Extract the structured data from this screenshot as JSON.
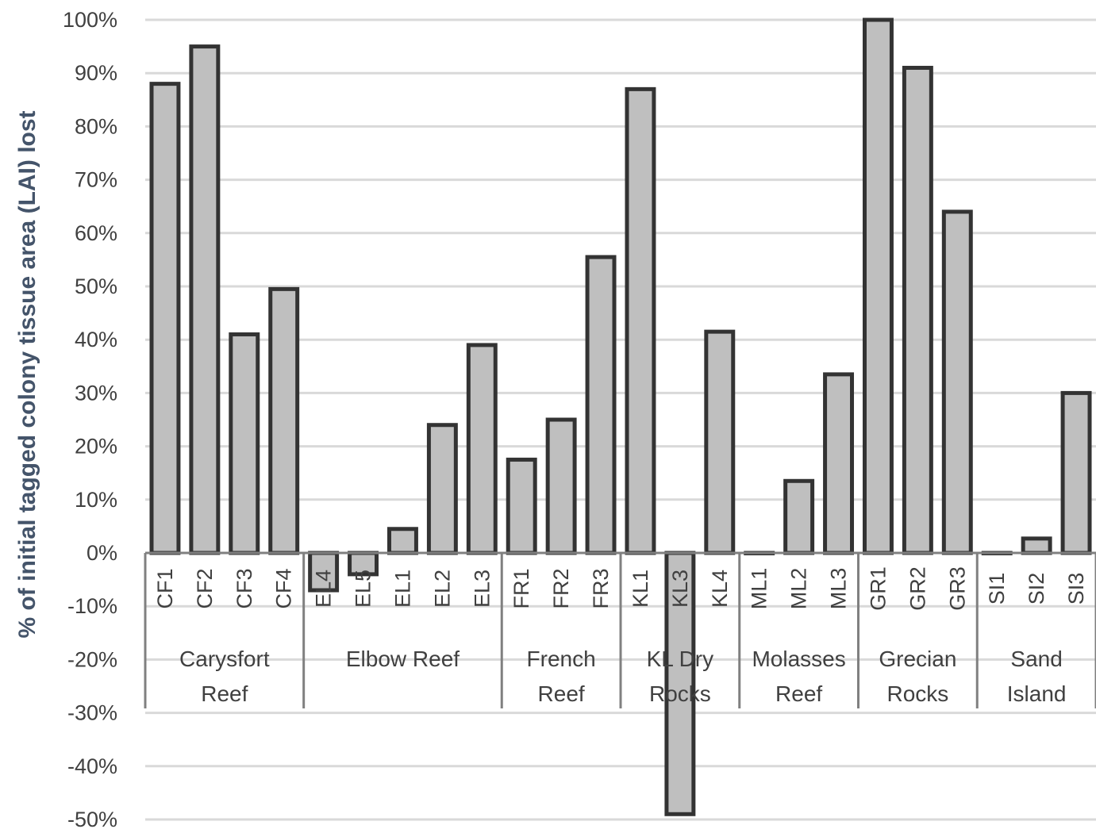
{
  "chart_data": {
    "type": "bar",
    "ylabel": "% of initial tagged colony tissue area (LAI) lost",
    "ylim": [
      -0.5,
      1.0
    ],
    "yticks": [
      1.0,
      0.9,
      0.8,
      0.7,
      0.6,
      0.5,
      0.4,
      0.3,
      0.2,
      0.1,
      0.0,
      -0.1,
      -0.2,
      -0.3,
      -0.4,
      -0.5
    ],
    "ytick_labels": [
      "100%",
      "90%",
      "80%",
      "70%",
      "60%",
      "50%",
      "40%",
      "30%",
      "20%",
      "10%",
      "0%",
      "-10%",
      "-20%",
      "-30%",
      "-40%",
      "-50%"
    ],
    "grid": true,
    "bar_color": "#bfbfbf",
    "bar_edge_color": "#333333",
    "grid_color": "#d9d9d9",
    "groups": [
      {
        "label_lines": [
          "Carysfort",
          "Reef"
        ],
        "categories": [
          "CF1",
          "CF2",
          "CF3",
          "CF4"
        ],
        "values": [
          0.88,
          0.95,
          0.41,
          0.495
        ]
      },
      {
        "label_lines": [
          "Elbow Reef"
        ],
        "categories": [
          "EL4",
          "EL5",
          "EL1",
          "EL2",
          "EL3"
        ],
        "values": [
          -0.07,
          -0.04,
          0.045,
          0.24,
          0.39
        ]
      },
      {
        "label_lines": [
          "French",
          "Reef"
        ],
        "categories": [
          "FR1",
          "FR2",
          "FR3"
        ],
        "values": [
          0.175,
          0.25,
          0.555
        ]
      },
      {
        "label_lines": [
          "KL Dry",
          "Rocks"
        ],
        "categories": [
          "KL1",
          "KL3",
          "KL4"
        ],
        "values": [
          0.87,
          -0.49,
          0.415
        ]
      },
      {
        "label_lines": [
          "Molasses",
          "Reef"
        ],
        "categories": [
          "ML1",
          "ML2",
          "ML3"
        ],
        "values": [
          0.0,
          0.135,
          0.335
        ]
      },
      {
        "label_lines": [
          "Grecian",
          "Rocks"
        ],
        "categories": [
          "GR1",
          "GR2",
          "GR3"
        ],
        "values": [
          1.0,
          0.91,
          0.64
        ]
      },
      {
        "label_lines": [
          "Sand",
          "Island"
        ],
        "categories": [
          "SI1",
          "SI2",
          "SI3"
        ],
        "values": [
          0.0,
          0.027,
          0.3
        ]
      }
    ]
  }
}
